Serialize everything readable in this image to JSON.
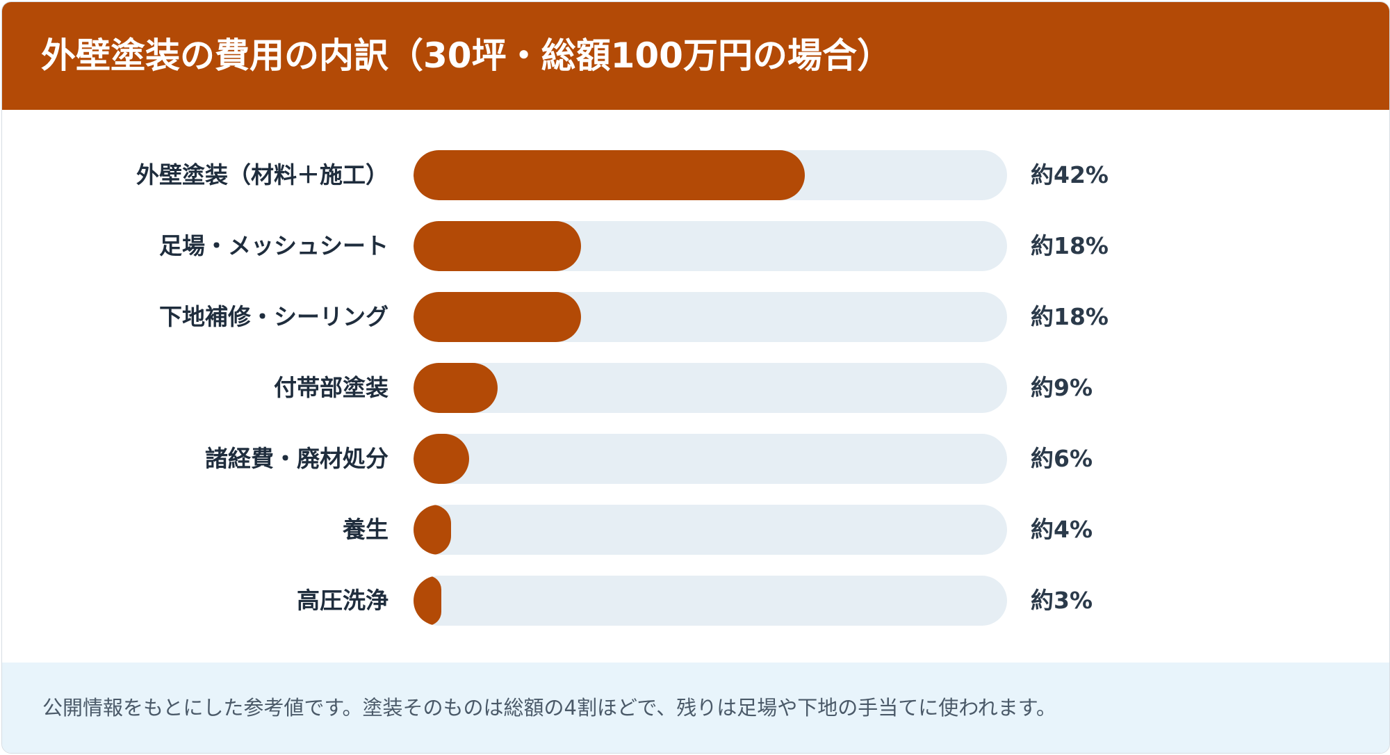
{
  "header": {
    "title": "外壁塗装の費用の内訳（30坪・総額100万円の場合）",
    "background": "#b34a06"
  },
  "chart_data": {
    "type": "bar",
    "orientation": "horizontal",
    "title": "外壁塗装の費用の内訳（30坪・総額100万円の場合）",
    "unit": "%",
    "xlim": [
      0,
      100
    ],
    "categories": [
      "外壁塗装（材料＋施工）",
      "足場・メッシュシート",
      "下地補修・シーリング",
      "付帯部塗装",
      "諸経費・廃材処分",
      "養生",
      "高圧洗浄"
    ],
    "values": [
      42,
      18,
      18,
      9,
      6,
      4,
      3
    ],
    "value_labels": [
      "約42%",
      "約18%",
      "約18%",
      "約9%",
      "約6%",
      "約4%",
      "約3%"
    ],
    "bar_color": "#b34a06",
    "track_color": "#e6eef4",
    "grid": false
  },
  "footer": {
    "note": "公開情報をもとにした参考値です。塗装そのものは総額の4割ほどで、残りは足場や下地の手当てに使われます。",
    "background": "#e8f4fb"
  }
}
